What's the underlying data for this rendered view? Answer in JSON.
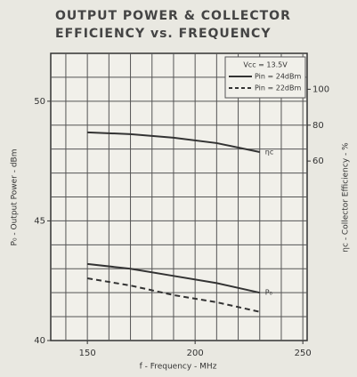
{
  "chart_data": {
    "type": "line",
    "title": [
      "OUTPUT POWER & COLLECTOR",
      "EFFICIENCY vs. FREQUENCY"
    ],
    "xlabel": "f - Frequency - MHz",
    "ylabel": "P₀ - Output Power - dBm",
    "y2label": "ηc - Collector Efficiency - %",
    "xlim": [
      133,
      252
    ],
    "xticks": [
      150,
      200,
      250
    ],
    "xgrid": [
      140,
      150,
      160,
      170,
      180,
      190,
      200,
      210,
      220,
      230,
      240,
      250
    ],
    "ylim": [
      40,
      52
    ],
    "yticks": [
      40,
      45,
      50
    ],
    "ygrid": [
      41,
      42,
      43,
      44,
      45,
      46,
      47,
      48,
      49,
      50,
      51
    ],
    "y2lim": [
      -40,
      120
    ],
    "y2ticks": [
      60,
      80,
      100
    ],
    "legend_title": "Vcc = 13.5V",
    "legend": "upper right",
    "x": [
      150,
      170,
      190,
      210,
      230
    ],
    "series": [
      {
        "name": "Pin = 24dBm",
        "color": "#333333",
        "dash": false,
        "values": [
          43.2,
          43.0,
          42.7,
          42.4,
          42.0
        ]
      },
      {
        "name": "Pin = 22dBm",
        "color": "#333333",
        "dash": true,
        "values": [
          42.6,
          42.3,
          41.9,
          41.6,
          41.2
        ]
      },
      {
        "name": "ηc",
        "color": "#333333",
        "dash": false,
        "axis": "y2",
        "values": [
          76,
          75,
          73,
          70,
          65
        ]
      }
    ],
    "annotations": [
      "ηc",
      "P₀"
    ]
  }
}
